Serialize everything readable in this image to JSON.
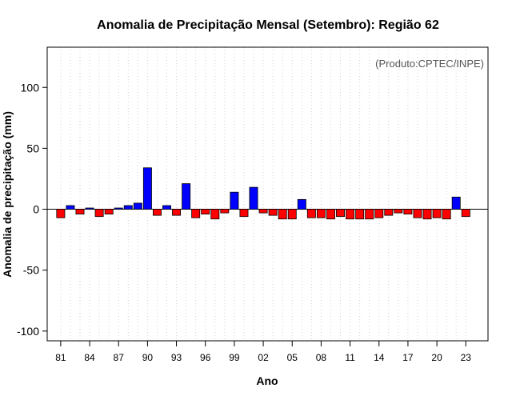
{
  "chart_data": {
    "type": "bar",
    "title": "Anomalia de Precipitação Mensal (Setembro): Região 62",
    "xlabel": "Ano",
    "ylabel": "Anomalia de precipitação (mm)",
    "annotation": "(Produto:CPTEC/INPE)",
    "ylim": [
      -108,
      133
    ],
    "yticks": [
      -100,
      -50,
      0,
      50,
      100
    ],
    "ytick_labels": [
      "-100",
      "-50",
      "0",
      "50",
      "100"
    ],
    "grid": "vertical dotted",
    "x": [
      1981,
      1982,
      1983,
      1984,
      1985,
      1986,
      1987,
      1988,
      1989,
      1990,
      1991,
      1992,
      1993,
      1994,
      1995,
      1996,
      1997,
      1998,
      1999,
      2000,
      2001,
      2002,
      2003,
      2004,
      2005,
      2006,
      2007,
      2008,
      2009,
      2010,
      2011,
      2012,
      2013,
      2014,
      2015,
      2016,
      2017,
      2018,
      2019,
      2020,
      2021,
      2022,
      2023
    ],
    "xtick_labels": [
      "81",
      "84",
      "87",
      "90",
      "93",
      "96",
      "99",
      "02",
      "05",
      "08",
      "11",
      "14",
      "17",
      "20",
      "23"
    ],
    "xtick_years": [
      1981,
      1984,
      1987,
      1990,
      1993,
      1996,
      1999,
      2002,
      2005,
      2008,
      2011,
      2014,
      2017,
      2020,
      2023
    ],
    "values": [
      -7,
      3,
      -4,
      1,
      -6,
      -4,
      1,
      3,
      5,
      34,
      -5,
      3,
      -5,
      21,
      -7,
      -4,
      -8,
      -3,
      14,
      -6,
      18,
      -3,
      -5,
      -8,
      -8,
      8,
      -7,
      -7,
      -8,
      -6,
      -8,
      -8,
      -8,
      -7,
      -5,
      -3,
      -4,
      -7,
      -8,
      -7,
      -8,
      10,
      -6
    ],
    "colors": {
      "positive": "#0000ff",
      "negative": "#ff0000",
      "outline": "#000000",
      "grid": "#d3d3d3"
    }
  }
}
